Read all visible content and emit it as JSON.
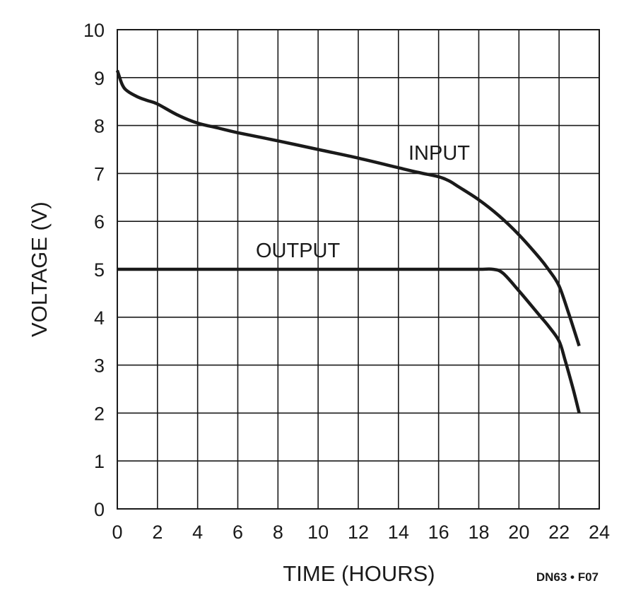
{
  "chart_data": {
    "type": "line",
    "xlabel": "TIME (HOURS)",
    "ylabel": "VOLTAGE (V)",
    "xlim": [
      0,
      24
    ],
    "ylim": [
      0,
      10
    ],
    "x_ticks": [
      0,
      2,
      4,
      6,
      8,
      10,
      12,
      14,
      16,
      18,
      20,
      22,
      24
    ],
    "y_ticks": [
      0,
      1,
      2,
      3,
      4,
      5,
      6,
      7,
      8,
      9,
      10
    ],
    "grid": true,
    "line_color": "#1a1a1a",
    "series": [
      {
        "name": "INPUT",
        "points": [
          [
            0,
            9.15
          ],
          [
            0.25,
            8.85
          ],
          [
            0.5,
            8.72
          ],
          [
            1,
            8.6
          ],
          [
            1.5,
            8.52
          ],
          [
            2,
            8.45
          ],
          [
            3,
            8.22
          ],
          [
            4,
            8.05
          ],
          [
            5,
            7.95
          ],
          [
            6,
            7.85
          ],
          [
            8,
            7.68
          ],
          [
            10,
            7.5
          ],
          [
            12,
            7.32
          ],
          [
            14,
            7.12
          ],
          [
            15,
            7.02
          ],
          [
            16,
            6.93
          ],
          [
            16.5,
            6.85
          ],
          [
            17,
            6.72
          ],
          [
            18,
            6.45
          ],
          [
            19,
            6.12
          ],
          [
            20,
            5.72
          ],
          [
            21,
            5.25
          ],
          [
            21.5,
            4.98
          ],
          [
            22,
            4.65
          ],
          [
            22.5,
            4.05
          ],
          [
            23,
            3.4
          ]
        ]
      },
      {
        "name": "OUTPUT",
        "points": [
          [
            0,
            5.0
          ],
          [
            4,
            5.0
          ],
          [
            8,
            5.0
          ],
          [
            12,
            5.0
          ],
          [
            16,
            5.0
          ],
          [
            18,
            5.0
          ],
          [
            18.7,
            5.0
          ],
          [
            19.2,
            4.92
          ],
          [
            20,
            4.55
          ],
          [
            21,
            4.05
          ],
          [
            21.5,
            3.8
          ],
          [
            22,
            3.5
          ],
          [
            22.3,
            3.1
          ],
          [
            22.7,
            2.5
          ],
          [
            23,
            2.0
          ]
        ]
      }
    ],
    "annotation": "DN63 • F07"
  }
}
